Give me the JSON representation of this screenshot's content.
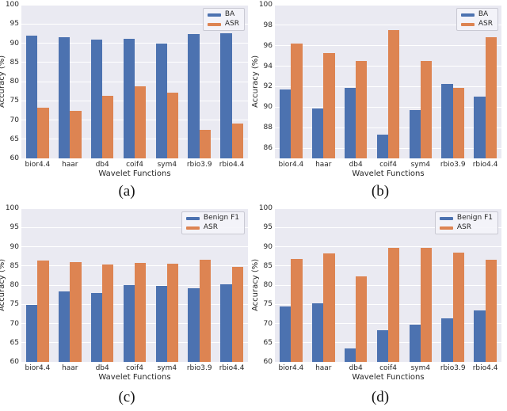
{
  "figure": {
    "background": "#ffffff"
  },
  "colors": {
    "series_blue": "#4c72b0",
    "series_orange": "#dd8452",
    "plot_background": "#eaeaf2",
    "gridline": "#ffffff",
    "text": "#262626"
  },
  "chart_data": [
    {
      "id": "a",
      "type": "bar",
      "caption": "(a)",
      "xlabel": "Wavelet Functions",
      "ylabel": "Accuracy (%)",
      "ylim": [
        60,
        100
      ],
      "yticks": [
        60,
        65,
        70,
        75,
        80,
        85,
        90,
        95,
        100
      ],
      "categories": [
        "bior4.4",
        "haar",
        "db4",
        "coif4",
        "sym4",
        "rbio3.9",
        "rbio4.4"
      ],
      "grid": true,
      "legend_position": "upper right",
      "series": [
        {
          "name": "BA",
          "color": "#4c72b0",
          "values": [
            92.0,
            91.5,
            90.9,
            91.2,
            89.8,
            92.4,
            92.6
          ]
        },
        {
          "name": "ASR",
          "color": "#dd8452",
          "values": [
            73.3,
            72.3,
            76.2,
            78.8,
            77.2,
            67.4,
            69.0
          ]
        }
      ]
    },
    {
      "id": "b",
      "type": "bar",
      "caption": "(b)",
      "xlabel": "Wavelet Functions",
      "ylabel": "Accuracy (%)",
      "ylim": [
        85,
        100
      ],
      "yticks": [
        86,
        88,
        90,
        92,
        94,
        96,
        98,
        100
      ],
      "categories": [
        "bior4.4",
        "haar",
        "db4",
        "coif4",
        "sym4",
        "rbio3.9",
        "rbio4.4"
      ],
      "grid": true,
      "legend_position": "upper right",
      "series": [
        {
          "name": "BA",
          "color": "#4c72b0",
          "values": [
            91.7,
            89.9,
            91.9,
            87.3,
            89.7,
            92.3,
            91.0
          ]
        },
        {
          "name": "ASR",
          "color": "#dd8452",
          "values": [
            96.2,
            95.3,
            94.5,
            97.5,
            94.5,
            91.9,
            96.8
          ]
        }
      ]
    },
    {
      "id": "c",
      "type": "bar",
      "caption": "(c)",
      "xlabel": "Wavelet Functions",
      "ylabel": "Accuracy (%)",
      "ylim": [
        60,
        100
      ],
      "yticks": [
        60,
        65,
        70,
        75,
        80,
        85,
        90,
        95,
        100
      ],
      "categories": [
        "bior4.4",
        "haar",
        "db4",
        "coif4",
        "sym4",
        "rbio3.9",
        "rbio4.4"
      ],
      "grid": true,
      "legend_position": "upper right",
      "series": [
        {
          "name": "Benign F1",
          "color": "#4c72b0",
          "values": [
            74.9,
            78.4,
            77.9,
            80.1,
            79.9,
            79.2,
            80.3
          ]
        },
        {
          "name": "ASR",
          "color": "#dd8452",
          "values": [
            86.3,
            86.0,
            85.4,
            85.7,
            85.5,
            86.6,
            84.8
          ]
        }
      ]
    },
    {
      "id": "d",
      "type": "bar",
      "caption": "(d)",
      "xlabel": "Wavelet Functions",
      "ylabel": "Accuracy (%)",
      "ylim": [
        60,
        100
      ],
      "yticks": [
        60,
        65,
        70,
        75,
        80,
        85,
        90,
        95,
        100
      ],
      "categories": [
        "bior4.4",
        "haar",
        "db4",
        "coif4",
        "sym4",
        "rbio3.9",
        "rbio4.4"
      ],
      "grid": true,
      "legend_position": "upper right",
      "series": [
        {
          "name": "Benign F1",
          "color": "#4c72b0",
          "values": [
            74.5,
            75.2,
            63.5,
            68.2,
            69.6,
            71.3,
            73.5
          ]
        },
        {
          "name": "ASR",
          "color": "#dd8452",
          "values": [
            86.9,
            88.2,
            82.3,
            89.7,
            89.7,
            88.4,
            86.7
          ]
        }
      ]
    }
  ]
}
